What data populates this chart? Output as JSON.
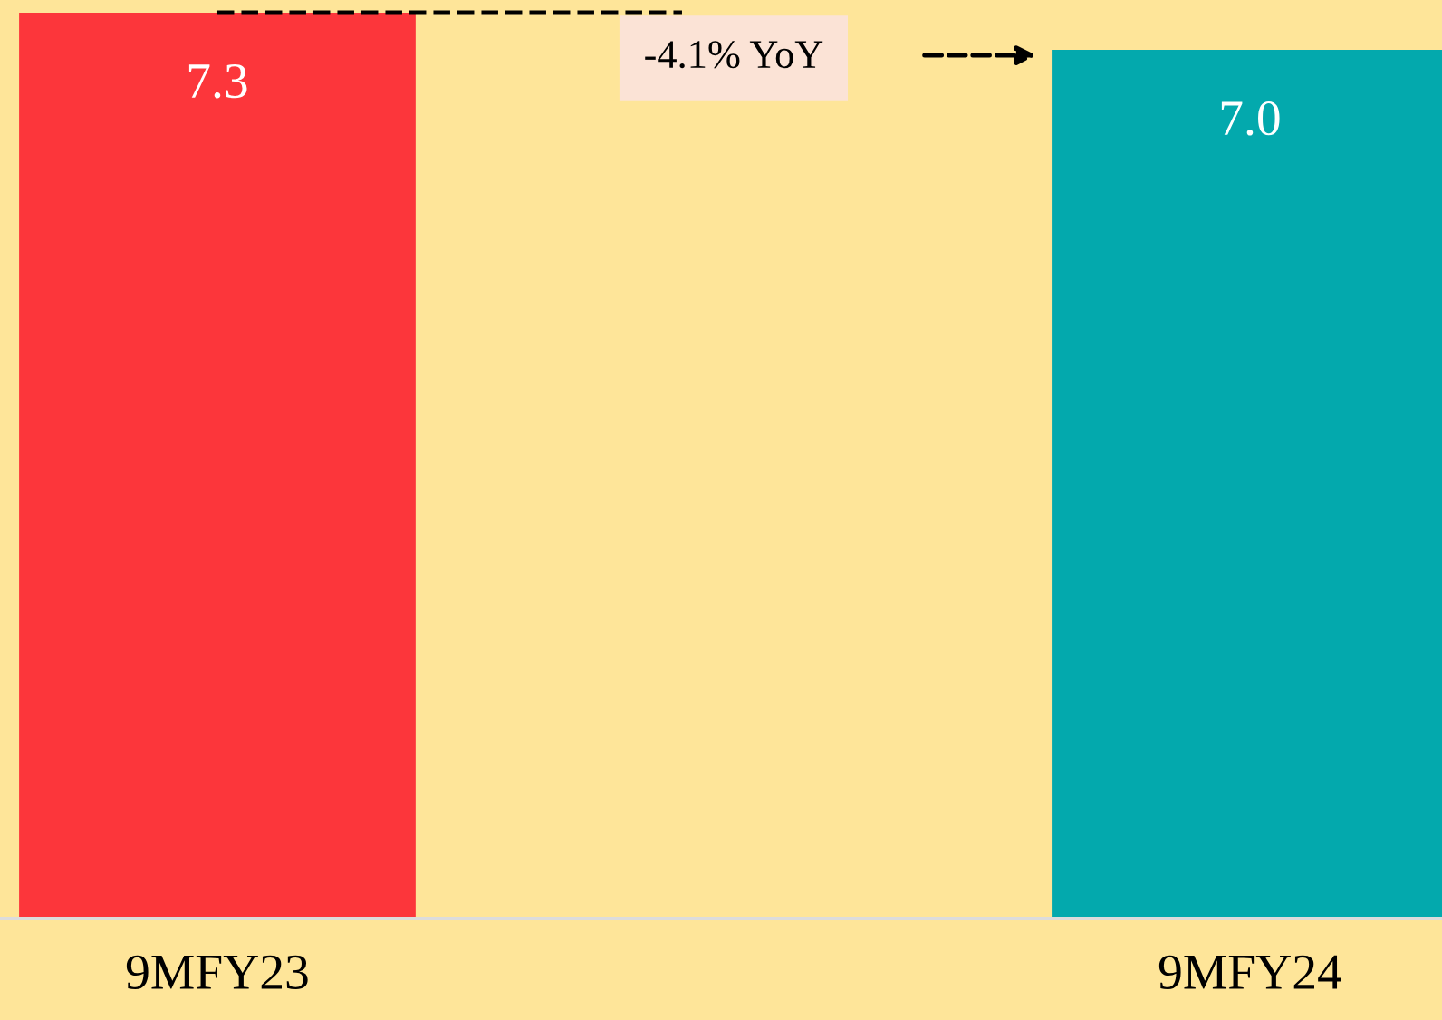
{
  "chart_data": {
    "type": "bar",
    "categories": [
      "9MFY23",
      "9MFY24"
    ],
    "values": [
      7.3,
      7.0
    ],
    "colors": [
      "#fc363b",
      "#03a9ad"
    ],
    "value_labels": [
      "7.3",
      "7.0"
    ],
    "annotations": [
      "-4.1% YoY"
    ]
  }
}
